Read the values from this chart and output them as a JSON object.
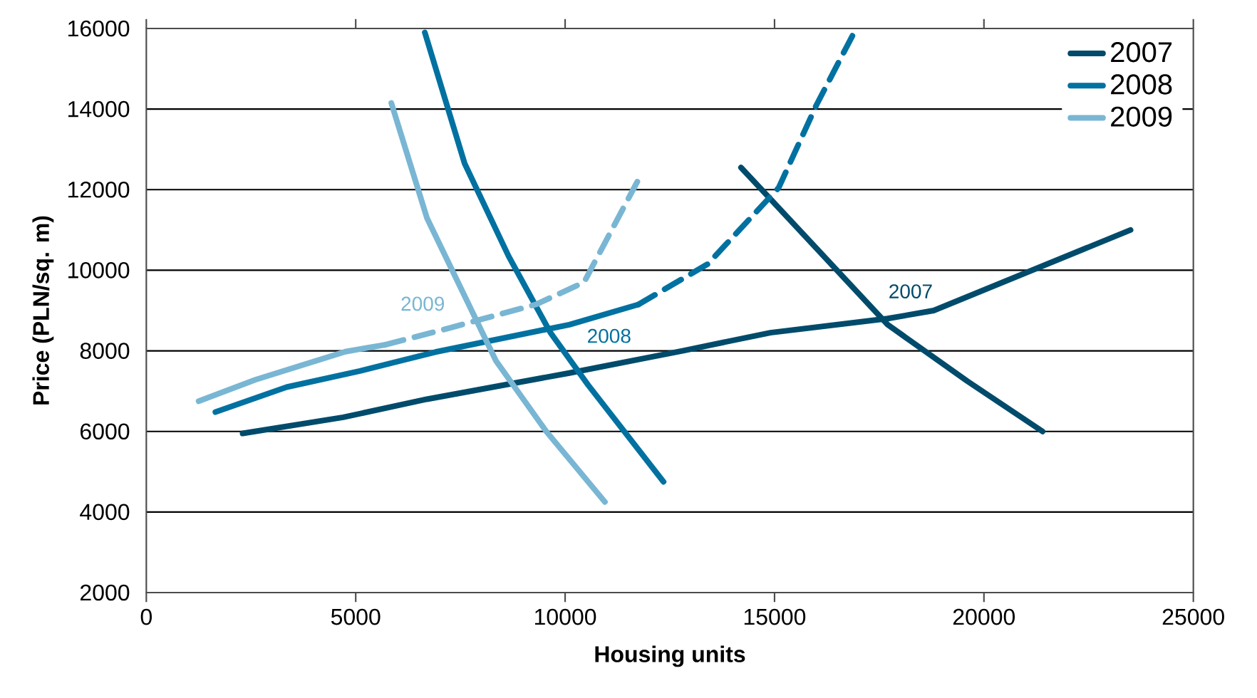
{
  "chart_data": {
    "type": "line",
    "xlabel": "Housing units",
    "ylabel": "Price (PLN/sq. m)",
    "xlim": [
      0,
      25000
    ],
    "ylim": [
      2000,
      16000
    ],
    "xticks": [
      0,
      5000,
      10000,
      15000,
      20000,
      25000
    ],
    "yticks": [
      2000,
      4000,
      6000,
      8000,
      10000,
      12000,
      14000,
      16000
    ],
    "grid": "y",
    "legend": "top right",
    "marker": "none",
    "series": [
      {
        "name": "2007",
        "color": "#004b6b",
        "line_style": "solid",
        "x": [
          2300,
          4700,
          6700,
          10100,
          12800,
          14900,
          17700,
          18800,
          23500
        ],
        "values": [
          5950,
          6350,
          6800,
          7450,
          8000,
          8450,
          8800,
          9000,
          11000
        ]
      },
      {
        "color": "#004b6b",
        "line_style": "solid",
        "x": [
          14200,
          17700,
          19600,
          21400
        ],
        "values": [
          12550,
          8650,
          7250,
          6000
        ]
      },
      {
        "name": "2008",
        "color": "#0071a0",
        "line_style": "solid",
        "x": [
          1650,
          3350,
          5100,
          6900,
          10100,
          11750
        ],
        "values": [
          6480,
          7100,
          7500,
          7970,
          8650,
          9150
        ]
      },
      {
        "color": "#0071a0",
        "line_style": "dashed",
        "x": [
          11750,
          13400,
          15100,
          16000,
          16900
        ],
        "values": [
          9150,
          10150,
          12050,
          14100,
          15900
        ]
      },
      {
        "color": "#0071a0",
        "line_style": "solid",
        "x": [
          6650,
          7600,
          8650,
          9650,
          10550,
          12350
        ],
        "values": [
          15900,
          12650,
          10350,
          8450,
          7150,
          4750
        ]
      },
      {
        "name": "2009",
        "color": "#79b6d3",
        "line_style": "solid",
        "x": [
          1250,
          2600,
          4750,
          5700
        ],
        "values": [
          6750,
          7280,
          7980,
          8150
        ]
      },
      {
        "color": "#79b6d3",
        "line_style": "dashed",
        "x": [
          5700,
          7250,
          9300,
          10450,
          11750
        ],
        "values": [
          8150,
          8570,
          9150,
          9700,
          12250
        ]
      },
      {
        "color": "#79b6d3",
        "line_style": "solid",
        "x": [
          5850,
          6700,
          8350,
          9550,
          10950
        ],
        "values": [
          14150,
          11300,
          7750,
          6000,
          4250
        ]
      }
    ],
    "annotations": [
      "2007",
      "2008",
      "2009"
    ]
  }
}
